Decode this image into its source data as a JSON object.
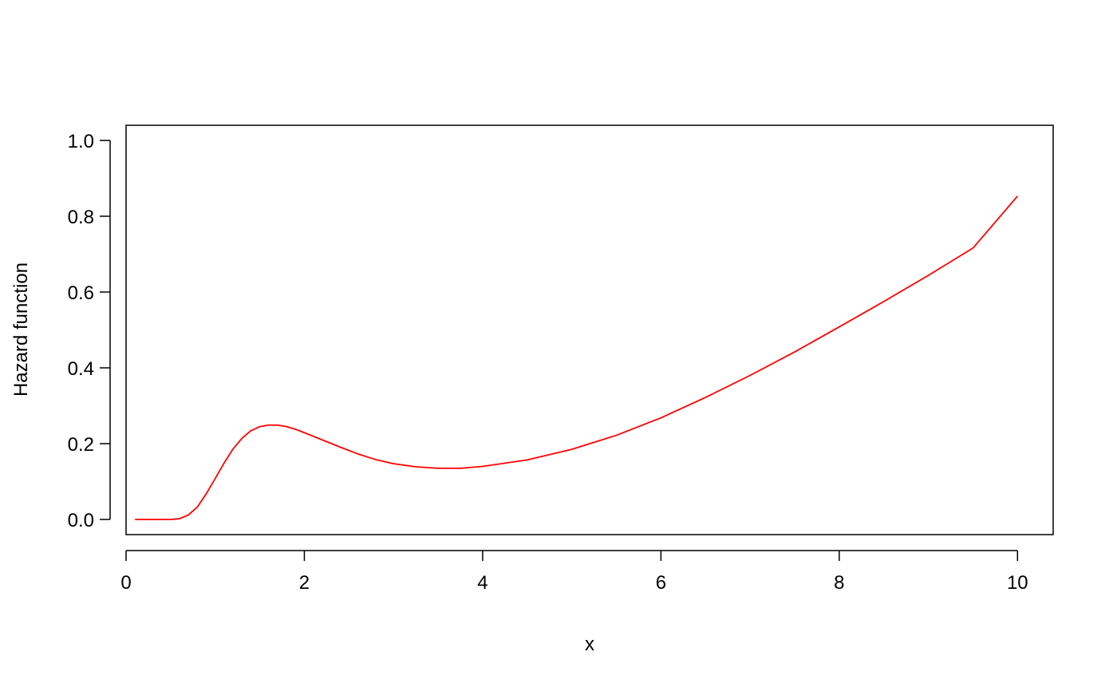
{
  "chart_data": {
    "type": "line",
    "title": "",
    "xlabel": "x",
    "ylabel": "Hazard function",
    "xlim": [
      0,
      10.4
    ],
    "ylim": [
      -0.04,
      1.04
    ],
    "grid": false,
    "x_ticks": [
      0,
      2,
      4,
      6,
      8,
      10
    ],
    "y_ticks": [
      0.0,
      0.2,
      0.4,
      0.6,
      0.8,
      1.0
    ],
    "x_tick_labels": [
      "0",
      "2",
      "4",
      "6",
      "8",
      "10"
    ],
    "y_tick_labels": [
      "0.0",
      "0.2",
      "0.4",
      "0.6",
      "0.8",
      "1.0"
    ],
    "series": [
      {
        "color": "#ff0000",
        "x": [
          0.1,
          0.2,
          0.3,
          0.4,
          0.5,
          0.6,
          0.7,
          0.8,
          0.9,
          1.0,
          1.1,
          1.2,
          1.3,
          1.4,
          1.5,
          1.6,
          1.7,
          1.8,
          1.9,
          2.0,
          2.2,
          2.4,
          2.6,
          2.8,
          3.0,
          3.25,
          3.5,
          3.75,
          4.0,
          4.5,
          5.0,
          5.5,
          6.0,
          6.5,
          7.0,
          7.5,
          8.0,
          8.5,
          9.0,
          9.5,
          10.0
        ],
        "y": [
          0.0,
          0.0,
          0.0,
          0.0,
          0.0,
          0.002,
          0.012,
          0.033,
          0.068,
          0.108,
          0.149,
          0.186,
          0.214,
          0.234,
          0.245,
          0.249,
          0.249,
          0.245,
          0.238,
          0.229,
          0.21,
          0.191,
          0.173,
          0.158,
          0.147,
          0.139,
          0.135,
          0.135,
          0.14,
          0.157,
          0.185,
          0.222,
          0.268,
          0.322,
          0.38,
          0.442,
          0.508,
          0.575,
          0.644,
          0.716,
          0.853
        ]
      }
    ]
  }
}
